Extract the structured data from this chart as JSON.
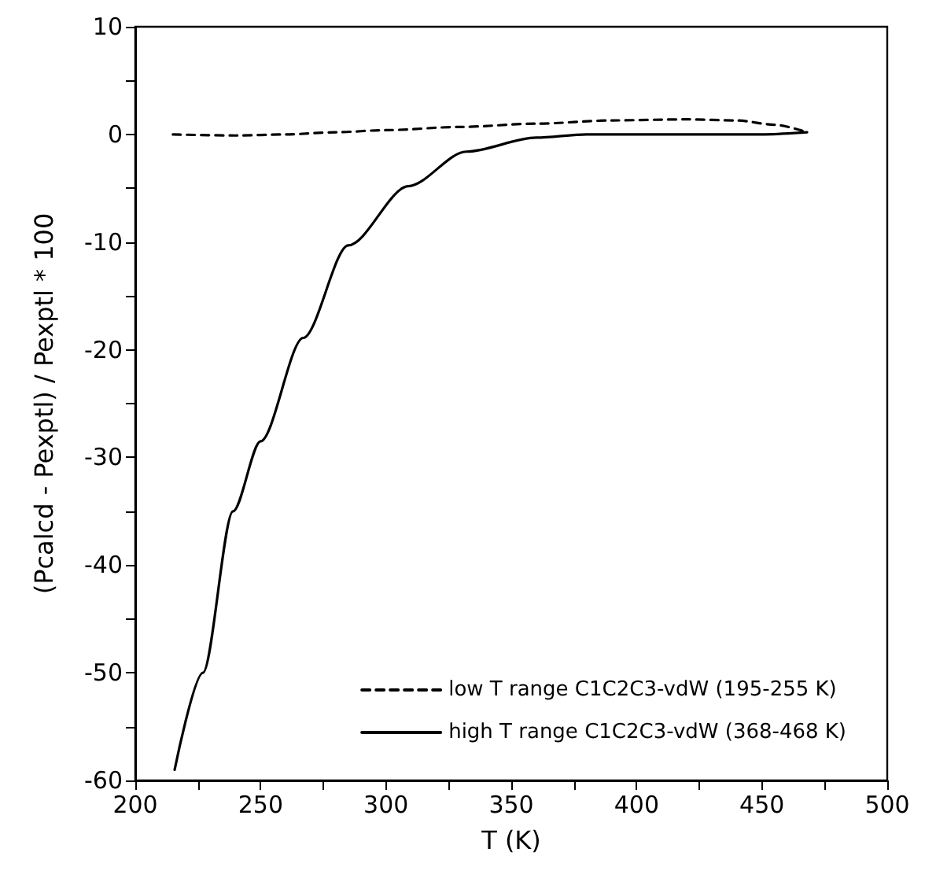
{
  "chart_data": {
    "type": "line",
    "xlabel": "T (K)",
    "ylabel": "(Pcalcd - Pexptl) / Pexptl * 100",
    "series": [
      {
        "name": "low T range C1C2C3-vdW (195-255 K)",
        "color": "#000000",
        "line_style": "dashed",
        "x": [
          215,
          240,
          260,
          280,
          300,
          330,
          360,
          390,
          420,
          440,
          455,
          468
        ],
        "values": [
          0,
          -0.1,
          0,
          0.2,
          0.4,
          0.7,
          1.0,
          1.3,
          1.4,
          1.3,
          0.9,
          0.2
        ]
      },
      {
        "name": "high T range C1C2C3-vdW (368-468 K)",
        "color": "#000000",
        "line_style": "solid",
        "x": [
          215.7,
          227,
          239,
          250,
          267,
          285,
          309,
          332,
          360,
          380,
          420,
          450,
          468
        ],
        "values": [
          -59,
          -50,
          -35,
          -28.5,
          -18.9,
          -10.3,
          -4.8,
          -1.6,
          -0.3,
          0,
          0,
          0,
          0.2
        ]
      }
    ],
    "xlim": [
      200,
      500
    ],
    "xticks": [
      200,
      {
        "value": 225,
        "label": null
      },
      250,
      {
        "value": 275,
        "label": null
      },
      300,
      {
        "value": 325,
        "label": null
      },
      350,
      {
        "value": 375,
        "label": null
      },
      400,
      {
        "value": 425,
        "label": null
      },
      450,
      {
        "value": 475,
        "label": null
      },
      500
    ],
    "ylim": [
      -60,
      10
    ],
    "yticks": [
      -60,
      {
        "value": -55,
        "label": null
      },
      -50,
      {
        "value": -45,
        "label": null
      },
      -40,
      {
        "value": -35,
        "label": null
      },
      -30,
      {
        "value": -25,
        "label": null
      },
      -20,
      {
        "value": -15,
        "label": null
      },
      -10,
      {
        "value": -5,
        "label": null
      },
      0,
      {
        "value": 5,
        "label": null
      },
      10
    ],
    "grid": false,
    "legend": "bottom right",
    "marker": "none"
  }
}
